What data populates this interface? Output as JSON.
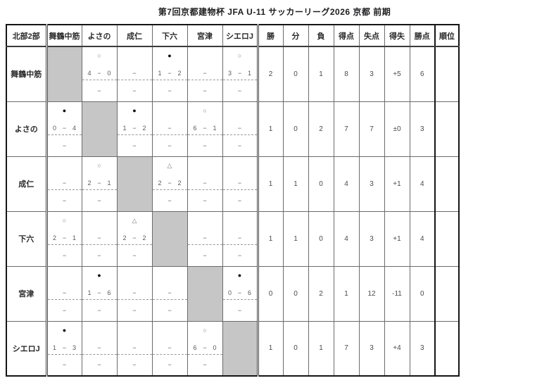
{
  "title": "第7回京都建物杯 JFA U-11 サッカーリーグ2026 京都 前期",
  "table": {
    "corner_header": "北部2部",
    "opponents": [
      "舞鶴中筋",
      "よさの",
      "成仁",
      "下六",
      "宮津",
      "シエロJ"
    ],
    "stat_headers": [
      "勝",
      "分",
      "負",
      "得点",
      "失点",
      "得失",
      "勝点"
    ],
    "rank_header": "順位",
    "result_symbols": {
      "win": "○",
      "loss": "●",
      "draw": "△"
    },
    "no_result": "−",
    "score_separator": "−",
    "rows": [
      {
        "team": "舞鶴中筋",
        "matches": [
          {
            "self": true
          },
          {
            "result": "win",
            "home": "4",
            "away": "0",
            "second": "−"
          },
          {
            "result": null,
            "second": "−"
          },
          {
            "result": "loss",
            "home": "1",
            "away": "2",
            "second": "−"
          },
          {
            "result": null,
            "second": "−"
          },
          {
            "result": "win",
            "home": "3",
            "away": "1",
            "second": "−"
          }
        ],
        "stats": [
          "2",
          "0",
          "1",
          "8",
          "3",
          "+5",
          "6"
        ],
        "rank": ""
      },
      {
        "team": "よさの",
        "matches": [
          {
            "result": "loss",
            "home": "0",
            "away": "4",
            "second": "−"
          },
          {
            "self": true
          },
          {
            "result": "loss",
            "home": "1",
            "away": "2",
            "second": "−"
          },
          {
            "result": null,
            "second": "−"
          },
          {
            "result": "win",
            "home": "6",
            "away": "1",
            "second": "−"
          },
          {
            "result": null,
            "second": "−"
          }
        ],
        "stats": [
          "1",
          "0",
          "2",
          "7",
          "7",
          "±0",
          "3"
        ],
        "rank": ""
      },
      {
        "team": "成仁",
        "matches": [
          {
            "result": null,
            "second": "−"
          },
          {
            "result": "win",
            "home": "2",
            "away": "1",
            "second": "−"
          },
          {
            "self": true
          },
          {
            "result": "draw",
            "home": "2",
            "away": "2",
            "second": "−"
          },
          {
            "result": null,
            "second": "−"
          },
          {
            "result": null,
            "second": "−"
          }
        ],
        "stats": [
          "1",
          "1",
          "0",
          "4",
          "3",
          "+1",
          "4"
        ],
        "rank": ""
      },
      {
        "team": "下六",
        "matches": [
          {
            "result": "win",
            "home": "2",
            "away": "1",
            "second": "−"
          },
          {
            "result": null,
            "second": "−"
          },
          {
            "result": "draw",
            "home": "2",
            "away": "2",
            "second": "−"
          },
          {
            "self": true
          },
          {
            "result": null,
            "second": "−"
          },
          {
            "result": null,
            "second": "−"
          }
        ],
        "stats": [
          "1",
          "1",
          "0",
          "4",
          "3",
          "+1",
          "4"
        ],
        "rank": ""
      },
      {
        "team": "宮津",
        "matches": [
          {
            "result": null,
            "second": "−"
          },
          {
            "result": "loss",
            "home": "1",
            "away": "6",
            "second": "−"
          },
          {
            "result": null,
            "second": "−"
          },
          {
            "result": null,
            "second": "−"
          },
          {
            "self": true
          },
          {
            "result": "loss",
            "home": "0",
            "away": "6",
            "second": "−"
          }
        ],
        "stats": [
          "0",
          "0",
          "2",
          "1",
          "12",
          "-11",
          "0"
        ],
        "rank": ""
      },
      {
        "team": "シエロJ",
        "matches": [
          {
            "result": "loss",
            "home": "1",
            "away": "3",
            "second": "−"
          },
          {
            "result": null,
            "second": "−"
          },
          {
            "result": null,
            "second": "−"
          },
          {
            "result": null,
            "second": "−"
          },
          {
            "result": "win",
            "home": "6",
            "away": "0",
            "second": "−"
          },
          {
            "self": true
          }
        ],
        "stats": [
          "1",
          "0",
          "1",
          "7",
          "3",
          "+4",
          "3"
        ],
        "rank": ""
      }
    ]
  },
  "colors": {
    "self_cell_bg": "#c6c6c6",
    "loss_symbol": "#0c0c0c",
    "win_draw_symbol": "#777777",
    "grid_line": "#6b6b6b"
  }
}
